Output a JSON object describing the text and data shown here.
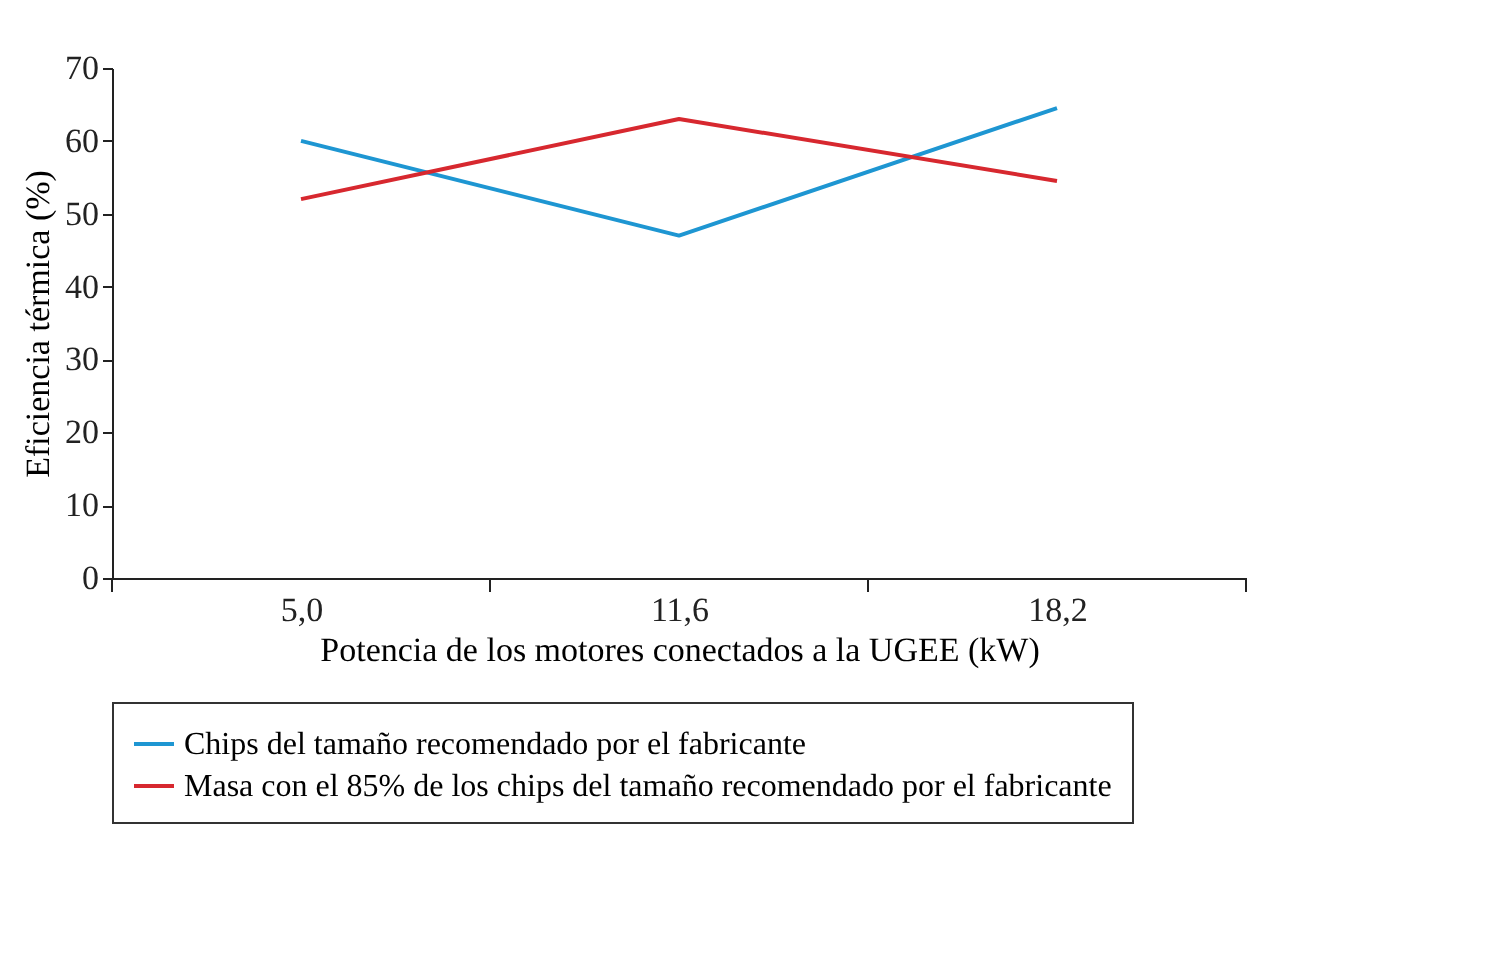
{
  "chart_data": {
    "type": "line",
    "xlabel": "Potencia de los motores conectados a la UGEE (kW)",
    "ylabel": "Eficiencia térmica (%)",
    "categories": [
      "5,0",
      "11,6",
      "18,2"
    ],
    "series": [
      {
        "name": "Chips del tamaño recomendado por el fabricante",
        "color": "#1e96d2",
        "values": [
          60,
          47,
          64.5
        ]
      },
      {
        "name": "Masa con el 85% de los chips del tamaño recomendado por el fabricante",
        "color": "#d7282f",
        "values": [
          52,
          63,
          54.5
        ]
      }
    ],
    "ylim": [
      0,
      70
    ],
    "yticks": [
      0,
      10,
      20,
      30,
      40,
      50,
      60,
      70
    ],
    "grid": false,
    "legend": "bottom"
  }
}
